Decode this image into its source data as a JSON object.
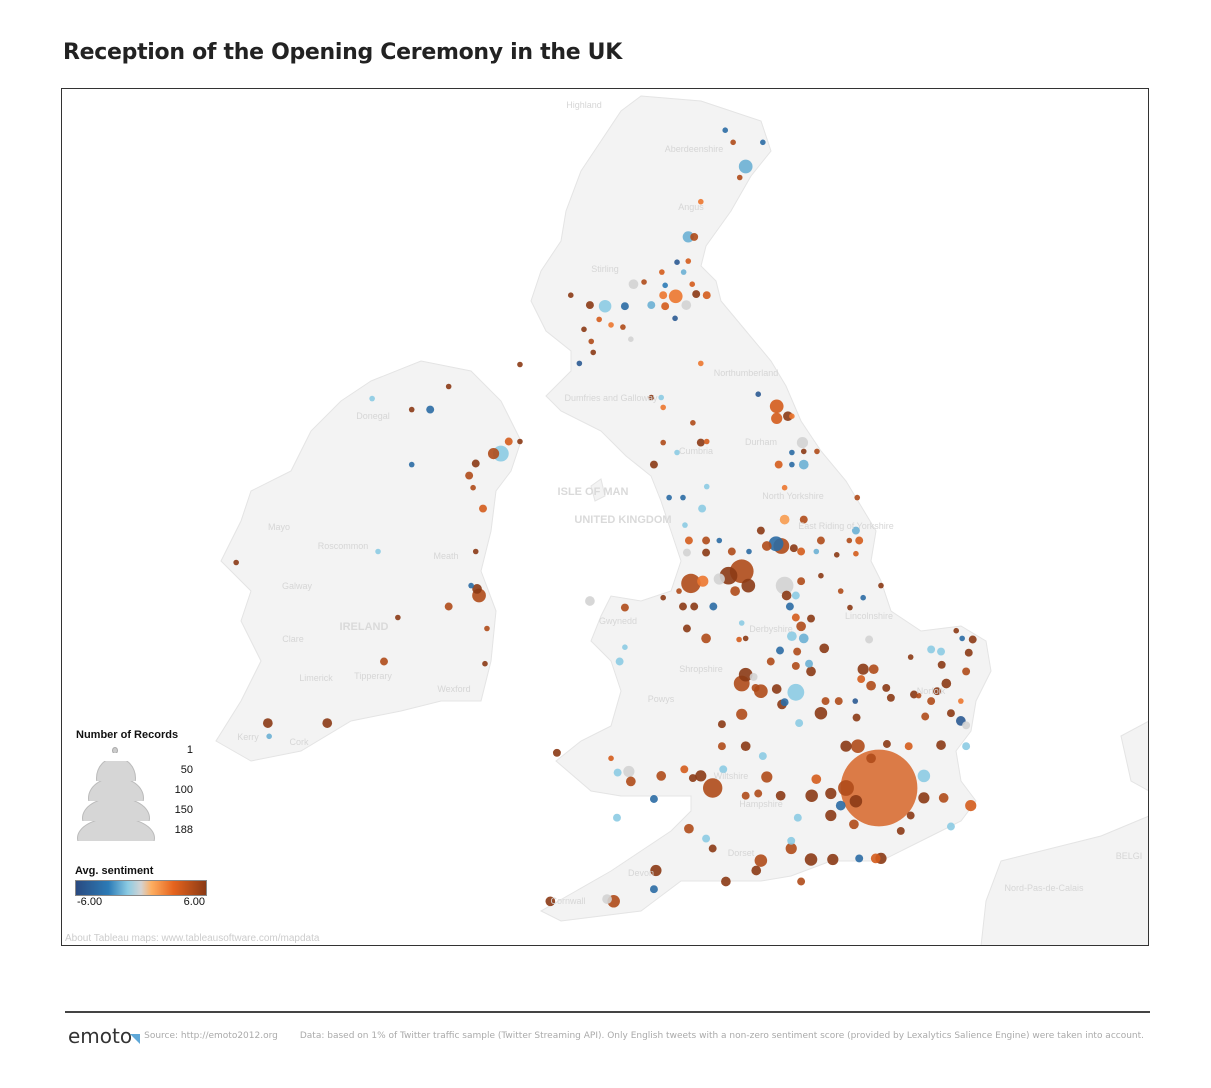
{
  "title": "Reception of the Opening Ceremony in the UK",
  "map_labels": [
    "Highland",
    "Aberdeenshire",
    "Angus",
    "Stirling",
    "Dumfries and Galloway",
    "Northumberland",
    "Durham",
    "Cumbria",
    "ISLE OF MAN",
    "UNITED KINGDOM",
    "North Yorkshire",
    "East Riding of Yorkshire",
    "Lincolnshire",
    "Derbyshire",
    "Gwynedd",
    "Shropshire",
    "Powys",
    "Norfolk",
    "Wiltshire",
    "Hampshire",
    "Dorset",
    "Devon",
    "Cornwall",
    "Donegal",
    "Mayo",
    "Roscommon",
    "Galway",
    "Meath",
    "IRELAND",
    "Clare",
    "Limerick",
    "Tipperary",
    "Wexford",
    "Kerry",
    "Cork",
    "BELGI",
    "Nord-Pas-de-Calais"
  ],
  "legend": {
    "size_title": "Number of Records",
    "size_values": [
      "1",
      "50",
      "100",
      "150",
      "188"
    ],
    "color_title": "Avg. sentiment",
    "color_min": "-6.00",
    "color_max": "6.00",
    "colors": {
      "neg_max": "#2a4a80",
      "neg": "#2c7bb6",
      "neg_light": "#8ccbe3",
      "neutral": "#d3d3d3",
      "pos_light": "#fdae61",
      "pos": "#e6641e",
      "pos_max": "#8b3a15"
    }
  },
  "about_link": "About Tableau maps: www.tableausoftware.com/mapdata",
  "footer": {
    "logo": "emoto",
    "source": "Source: http://emoto2012.org",
    "note": "Data: based on 1% of Twitter traffic sample (Twitter Streaming API). Only English tweets with a non-zero sentiment score (provided by Lexalytics Salience Engine) were taken into account."
  },
  "chart_data": {
    "type": "scatter",
    "encoding": {
      "position": "longitude/latitude",
      "size": "Number of Records",
      "color": "Avg. sentiment"
    },
    "color_range": [
      -6,
      6
    ],
    "size_range": [
      1,
      188
    ],
    "points_fields": [
      "lon",
      "lat",
      "records",
      "sentiment"
    ],
    "points": [
      [
        -2.45,
        57.48,
        1,
        -4
      ],
      [
        -1.88,
        57.37,
        1,
        -4
      ],
      [
        -2.33,
        57.37,
        1,
        5
      ],
      [
        -2.14,
        57.15,
        6,
        -2
      ],
      [
        -2.23,
        57.05,
        1,
        5
      ],
      [
        -2.82,
        56.83,
        1,
        3
      ],
      [
        -3.01,
        56.51,
        4,
        -2
      ],
      [
        -2.92,
        56.51,
        2,
        5
      ],
      [
        -3.18,
        56.28,
        1,
        -5
      ],
      [
        -3.01,
        56.29,
        1,
        4
      ],
      [
        -3.41,
        56.19,
        1,
        4
      ],
      [
        -3.08,
        56.19,
        1,
        -2
      ],
      [
        -3.84,
        56.08,
        3,
        0
      ],
      [
        -3.68,
        56.1,
        1,
        5
      ],
      [
        -3.36,
        56.07,
        1,
        -3
      ],
      [
        -2.95,
        56.08,
        1,
        4
      ],
      [
        -3.39,
        55.98,
        2,
        3
      ],
      [
        -3.2,
        55.97,
        6,
        3
      ],
      [
        -2.89,
        55.99,
        2,
        6
      ],
      [
        -2.73,
        55.98,
        2,
        4
      ],
      [
        -4.79,
        55.98,
        1,
        6
      ],
      [
        -4.27,
        55.88,
        5,
        -1.5
      ],
      [
        -3.97,
        55.88,
        2,
        -4
      ],
      [
        -4.5,
        55.89,
        2,
        6
      ],
      [
        -3.57,
        55.89,
        2,
        -2
      ],
      [
        -3.36,
        55.88,
        2,
        4
      ],
      [
        -3.04,
        55.89,
        3,
        0
      ],
      [
        -4.59,
        55.67,
        1,
        6
      ],
      [
        -4.36,
        55.76,
        1,
        4
      ],
      [
        -4.0,
        55.69,
        1,
        5
      ],
      [
        -4.18,
        55.71,
        1,
        3
      ],
      [
        -3.21,
        55.77,
        1,
        -5
      ],
      [
        -4.48,
        55.56,
        1,
        5
      ],
      [
        -4.45,
        55.46,
        1,
        6
      ],
      [
        -4.66,
        55.36,
        1,
        -5
      ],
      [
        -3.88,
        55.58,
        1,
        0
      ],
      [
        -5.56,
        55.35,
        1,
        6
      ],
      [
        -2.82,
        55.36,
        1,
        3
      ],
      [
        -3.57,
        55.05,
        1,
        6
      ],
      [
        -3.39,
        54.96,
        1,
        3
      ],
      [
        -3.42,
        55.05,
        1,
        -1.5
      ],
      [
        -2.94,
        54.82,
        1,
        5
      ],
      [
        -2.82,
        54.64,
        2,
        6
      ],
      [
        -2.73,
        54.65,
        1,
        4
      ],
      [
        -3.39,
        54.64,
        1,
        5
      ],
      [
        -3.18,
        54.55,
        1,
        -1.5
      ],
      [
        -3.53,
        54.44,
        2,
        6
      ],
      [
        -1.95,
        55.08,
        1,
        -5
      ],
      [
        -1.67,
        54.97,
        6,
        4
      ],
      [
        -1.5,
        54.88,
        3,
        6
      ],
      [
        -1.44,
        54.88,
        1,
        3
      ],
      [
        -1.67,
        54.86,
        4,
        4
      ],
      [
        -1.28,
        54.64,
        4,
        0
      ],
      [
        -1.06,
        54.56,
        1,
        5
      ],
      [
        -1.44,
        54.55,
        1,
        -4
      ],
      [
        -1.26,
        54.56,
        1,
        6
      ],
      [
        -1.64,
        54.44,
        2,
        4
      ],
      [
        -1.44,
        54.44,
        1,
        -4
      ],
      [
        -1.26,
        54.44,
        3,
        -2
      ],
      [
        -1.55,
        54.23,
        1,
        3
      ],
      [
        -3.3,
        54.14,
        1,
        -4
      ],
      [
        -3.09,
        54.14,
        1,
        -4
      ],
      [
        -2.73,
        54.24,
        1,
        -1.5
      ],
      [
        -2.8,
        54.04,
        2,
        -1.5
      ],
      [
        -0.45,
        54.14,
        1,
        5
      ],
      [
        -0.47,
        53.84,
        2,
        -2
      ],
      [
        -1.55,
        53.94,
        3,
        2
      ],
      [
        -1.26,
        53.94,
        2,
        5
      ],
      [
        -3.06,
        53.89,
        1,
        -1.5
      ],
      [
        -1.91,
        53.84,
        2,
        6
      ],
      [
        -1.68,
        53.72,
        7,
        -4
      ],
      [
        -1.6,
        53.7,
        8,
        5
      ],
      [
        -1.82,
        53.7,
        3,
        5
      ],
      [
        -1.41,
        53.68,
        2,
        6
      ],
      [
        -1.3,
        53.65,
        2,
        4
      ],
      [
        -3.0,
        53.75,
        2,
        4
      ],
      [
        -2.74,
        53.75,
        2,
        5
      ],
      [
        -2.54,
        53.75,
        1,
        -4
      ],
      [
        -2.35,
        53.65,
        2,
        5
      ],
      [
        -3.03,
        53.64,
        2,
        0
      ],
      [
        -2.74,
        53.64,
        2,
        6
      ],
      [
        -2.09,
        53.65,
        1,
        -4
      ],
      [
        -1.07,
        53.65,
        1,
        -2
      ],
      [
        -1.0,
        53.75,
        2,
        5
      ],
      [
        -0.76,
        53.62,
        1,
        6
      ],
      [
        -0.57,
        53.75,
        1,
        5
      ],
      [
        -0.42,
        53.75,
        2,
        4
      ],
      [
        -0.47,
        53.63,
        1,
        4
      ],
      [
        -2.2,
        53.47,
        18,
        5
      ],
      [
        -2.4,
        53.43,
        10,
        6
      ],
      [
        -2.97,
        53.36,
        12,
        5
      ],
      [
        -2.79,
        53.38,
        4,
        3
      ],
      [
        -2.1,
        53.34,
        6,
        6
      ],
      [
        -2.54,
        53.4,
        4,
        0
      ],
      [
        -2.63,
        53.15,
        2,
        -4
      ],
      [
        -2.92,
        53.15,
        2,
        6
      ],
      [
        -3.09,
        53.15,
        2,
        6
      ],
      [
        -3.15,
        53.29,
        1,
        5
      ],
      [
        -3.39,
        53.23,
        1,
        6
      ],
      [
        -1.55,
        53.34,
        10,
        0
      ],
      [
        -1.52,
        53.25,
        3,
        6
      ],
      [
        -1.47,
        53.15,
        2,
        -4
      ],
      [
        -1.38,
        53.25,
        2,
        -1.5
      ],
      [
        -2.3,
        53.29,
        3,
        5
      ],
      [
        -1.3,
        53.38,
        2,
        5
      ],
      [
        -1.0,
        53.43,
        1,
        6
      ],
      [
        -0.7,
        53.29,
        1,
        5
      ],
      [
        -0.36,
        53.23,
        1,
        -4
      ],
      [
        -0.09,
        53.34,
        1,
        6
      ],
      [
        -0.56,
        53.14,
        1,
        6
      ],
      [
        -4.5,
        53.2,
        3,
        0
      ],
      [
        -3.97,
        53.14,
        2,
        5
      ],
      [
        -1.38,
        53.05,
        2,
        4
      ],
      [
        -2.74,
        52.86,
        3,
        5
      ],
      [
        -3.03,
        52.95,
        2,
        6
      ],
      [
        -2.2,
        53.0,
        1,
        -1.5
      ],
      [
        -2.24,
        52.85,
        1,
        4
      ],
      [
        -2.14,
        52.86,
        1,
        6
      ],
      [
        -1.3,
        52.97,
        3,
        5
      ],
      [
        -1.26,
        52.86,
        3,
        -2
      ],
      [
        -1.44,
        52.88,
        3,
        -1.5
      ],
      [
        -1.15,
        53.04,
        2,
        6
      ],
      [
        -0.95,
        52.77,
        3,
        6
      ],
      [
        -0.27,
        52.85,
        2,
        0
      ],
      [
        -0.2,
        52.58,
        3,
        5
      ],
      [
        -0.36,
        52.58,
        4,
        6
      ],
      [
        -1.62,
        52.75,
        2,
        -4
      ],
      [
        -1.76,
        52.65,
        2,
        5
      ],
      [
        -1.36,
        52.74,
        2,
        5
      ],
      [
        -1.18,
        52.63,
        2,
        -2
      ],
      [
        -1.15,
        52.56,
        3,
        6
      ],
      [
        -1.38,
        52.61,
        2,
        5
      ],
      [
        -2.14,
        52.53,
        6,
        6
      ],
      [
        -2.2,
        52.45,
        8,
        5
      ],
      [
        -1.91,
        52.38,
        6,
        5
      ],
      [
        -2.02,
        52.51,
        2,
        0
      ],
      [
        -1.67,
        52.4,
        3,
        6
      ],
      [
        -1.38,
        52.37,
        9,
        -1.5
      ],
      [
        -1.55,
        52.28,
        2,
        -4
      ],
      [
        -2.2,
        52.17,
        4,
        5
      ],
      [
        -1.99,
        52.41,
        2,
        5
      ],
      [
        -2.5,
        52.08,
        2,
        6
      ],
      [
        -1.59,
        52.26,
        3,
        6
      ],
      [
        -1.33,
        52.09,
        2,
        -1.5
      ],
      [
        -1.0,
        52.18,
        5,
        6
      ],
      [
        -0.93,
        52.29,
        2,
        5
      ],
      [
        -0.73,
        52.29,
        2,
        5
      ],
      [
        -0.46,
        52.14,
        2,
        6
      ],
      [
        -0.48,
        52.29,
        1,
        -5
      ],
      [
        -0.24,
        52.43,
        3,
        5
      ],
      [
        -0.01,
        52.41,
        2,
        6
      ],
      [
        -0.39,
        52.49,
        2,
        4
      ],
      [
        0.06,
        52.32,
        2,
        6
      ],
      [
        0.41,
        52.35,
        2,
        6
      ],
      [
        0.48,
        52.34,
        1,
        5
      ],
      [
        0.36,
        52.69,
        1,
        6
      ],
      [
        0.67,
        52.76,
        2,
        -1.5
      ],
      [
        0.82,
        52.74,
        2,
        -1.5
      ],
      [
        0.83,
        52.62,
        2,
        6
      ],
      [
        1.05,
        52.93,
        1,
        6
      ],
      [
        1.14,
        52.86,
        1,
        -4
      ],
      [
        1.3,
        52.85,
        2,
        6
      ],
      [
        1.24,
        52.73,
        2,
        6
      ],
      [
        1.2,
        52.56,
        2,
        5
      ],
      [
        0.9,
        52.45,
        3,
        6
      ],
      [
        0.76,
        52.38,
        2,
        6
      ],
      [
        0.67,
        52.29,
        2,
        5
      ],
      [
        1.12,
        52.29,
        1,
        3
      ],
      [
        0.97,
        52.18,
        2,
        6
      ],
      [
        0.58,
        52.15,
        2,
        5
      ],
      [
        1.12,
        52.11,
        3,
        -5
      ],
      [
        1.2,
        52.07,
        2,
        0
      ],
      [
        1.2,
        51.88,
        2,
        -1.5
      ],
      [
        0.82,
        51.89,
        3,
        6
      ],
      [
        -0.44,
        51.88,
        6,
        5
      ],
      [
        -0.62,
        51.88,
        4,
        6
      ],
      [
        -0.24,
        51.77,
        3,
        5
      ],
      [
        0.0,
        51.9,
        2,
        6
      ],
      [
        0.33,
        51.88,
        2,
        4
      ],
      [
        0.56,
        51.61,
        5,
        -1.5
      ],
      [
        -0.12,
        51.5,
        188,
        4
      ],
      [
        -0.62,
        51.5,
        8,
        5
      ],
      [
        -0.47,
        51.38,
        5,
        6
      ],
      [
        -0.85,
        51.45,
        4,
        6
      ],
      [
        -1.07,
        51.58,
        3,
        4
      ],
      [
        -1.14,
        51.43,
        5,
        6
      ],
      [
        -0.85,
        51.25,
        4,
        6
      ],
      [
        -0.5,
        51.17,
        3,
        5
      ],
      [
        -0.7,
        51.34,
        3,
        -4
      ],
      [
        0.56,
        51.41,
        4,
        6
      ],
      [
        0.86,
        51.41,
        3,
        5
      ],
      [
        1.27,
        51.34,
        4,
        4
      ],
      [
        0.36,
        51.25,
        2,
        6
      ],
      [
        0.97,
        51.15,
        2,
        -1.5
      ],
      [
        0.21,
        51.11,
        2,
        6
      ],
      [
        -0.09,
        50.86,
        4,
        6
      ],
      [
        -0.17,
        50.86,
        3,
        4
      ],
      [
        -0.42,
        50.86,
        2,
        -4
      ],
      [
        -0.82,
        50.85,
        4,
        6
      ],
      [
        -1.15,
        50.85,
        5,
        6
      ],
      [
        -1.45,
        50.95,
        4,
        5
      ],
      [
        -1.45,
        51.02,
        2,
        -1.5
      ],
      [
        -1.3,
        50.65,
        2,
        5
      ],
      [
        -1.35,
        51.23,
        2,
        -1.5
      ],
      [
        -1.61,
        51.43,
        3,
        6
      ],
      [
        -1.82,
        51.6,
        4,
        5
      ],
      [
        -1.95,
        51.45,
        2,
        5
      ],
      [
        -2.64,
        51.5,
        12,
        5
      ],
      [
        -2.82,
        51.61,
        4,
        6
      ],
      [
        -2.48,
        51.67,
        2,
        -1.5
      ],
      [
        -3.07,
        51.67,
        2,
        4
      ],
      [
        -2.94,
        51.59,
        2,
        6
      ],
      [
        -3.42,
        51.61,
        3,
        5
      ],
      [
        -3.91,
        51.65,
        4,
        0
      ],
      [
        -4.08,
        51.64,
        2,
        -1.5
      ],
      [
        -3.88,
        51.56,
        3,
        5
      ],
      [
        -4.18,
        51.77,
        1,
        4
      ],
      [
        -5.0,
        51.82,
        2,
        6
      ],
      [
        -3.53,
        51.4,
        2,
        -4
      ],
      [
        -3.0,
        51.13,
        3,
        5
      ],
      [
        -4.09,
        51.23,
        2,
        -1.5
      ],
      [
        -2.14,
        51.43,
        2,
        5
      ],
      [
        -1.88,
        51.79,
        2,
        -1.5
      ],
      [
        -2.14,
        51.88,
        3,
        6
      ],
      [
        -2.5,
        51.88,
        2,
        5
      ],
      [
        -2.74,
        51.04,
        2,
        -1.5
      ],
      [
        -2.64,
        50.95,
        2,
        6
      ],
      [
        -1.91,
        50.84,
        5,
        5
      ],
      [
        -1.98,
        50.75,
        3,
        6
      ],
      [
        -2.44,
        50.65,
        3,
        6
      ],
      [
        -3.5,
        50.75,
        4,
        6
      ],
      [
        -3.53,
        50.58,
        2,
        -4
      ],
      [
        -4.14,
        50.47,
        5,
        5
      ],
      [
        -4.24,
        50.49,
        3,
        0
      ],
      [
        -5.1,
        50.47,
        3,
        6
      ],
      [
        -3.97,
        52.78,
        1,
        -1.5
      ],
      [
        -4.05,
        52.65,
        2,
        -1.5
      ],
      [
        -6.64,
        55.15,
        1,
        6
      ],
      [
        -7.2,
        54.94,
        1,
        6
      ],
      [
        -6.92,
        54.94,
        2,
        -4
      ],
      [
        -7.8,
        55.04,
        1,
        -1.5
      ],
      [
        -7.2,
        54.44,
        1,
        -4
      ],
      [
        -5.85,
        54.54,
        8,
        -1.5
      ],
      [
        -5.96,
        54.54,
        4,
        5
      ],
      [
        -5.73,
        54.65,
        2,
        4
      ],
      [
        -5.56,
        54.65,
        1,
        6
      ],
      [
        -6.23,
        54.45,
        2,
        6
      ],
      [
        -6.33,
        54.34,
        2,
        5
      ],
      [
        -6.27,
        54.23,
        1,
        5
      ],
      [
        -6.12,
        54.04,
        2,
        4
      ],
      [
        -6.23,
        53.65,
        1,
        6
      ],
      [
        -7.71,
        53.65,
        1,
        -1.5
      ],
      [
        -6.18,
        53.25,
        6,
        5
      ],
      [
        -6.3,
        53.34,
        1,
        -4
      ],
      [
        -6.21,
        53.31,
        3,
        6
      ],
      [
        -6.64,
        53.15,
        2,
        5
      ],
      [
        -6.06,
        52.95,
        1,
        5
      ],
      [
        -7.41,
        53.05,
        1,
        6
      ],
      [
        -7.62,
        52.65,
        2,
        5
      ],
      [
        -9.86,
        53.55,
        1,
        6
      ],
      [
        -9.38,
        52.09,
        3,
        6
      ],
      [
        -9.36,
        51.97,
        1,
        -2
      ],
      [
        -8.48,
        52.09,
        3,
        6
      ],
      [
        -6.09,
        52.63,
        1,
        6
      ]
    ]
  }
}
